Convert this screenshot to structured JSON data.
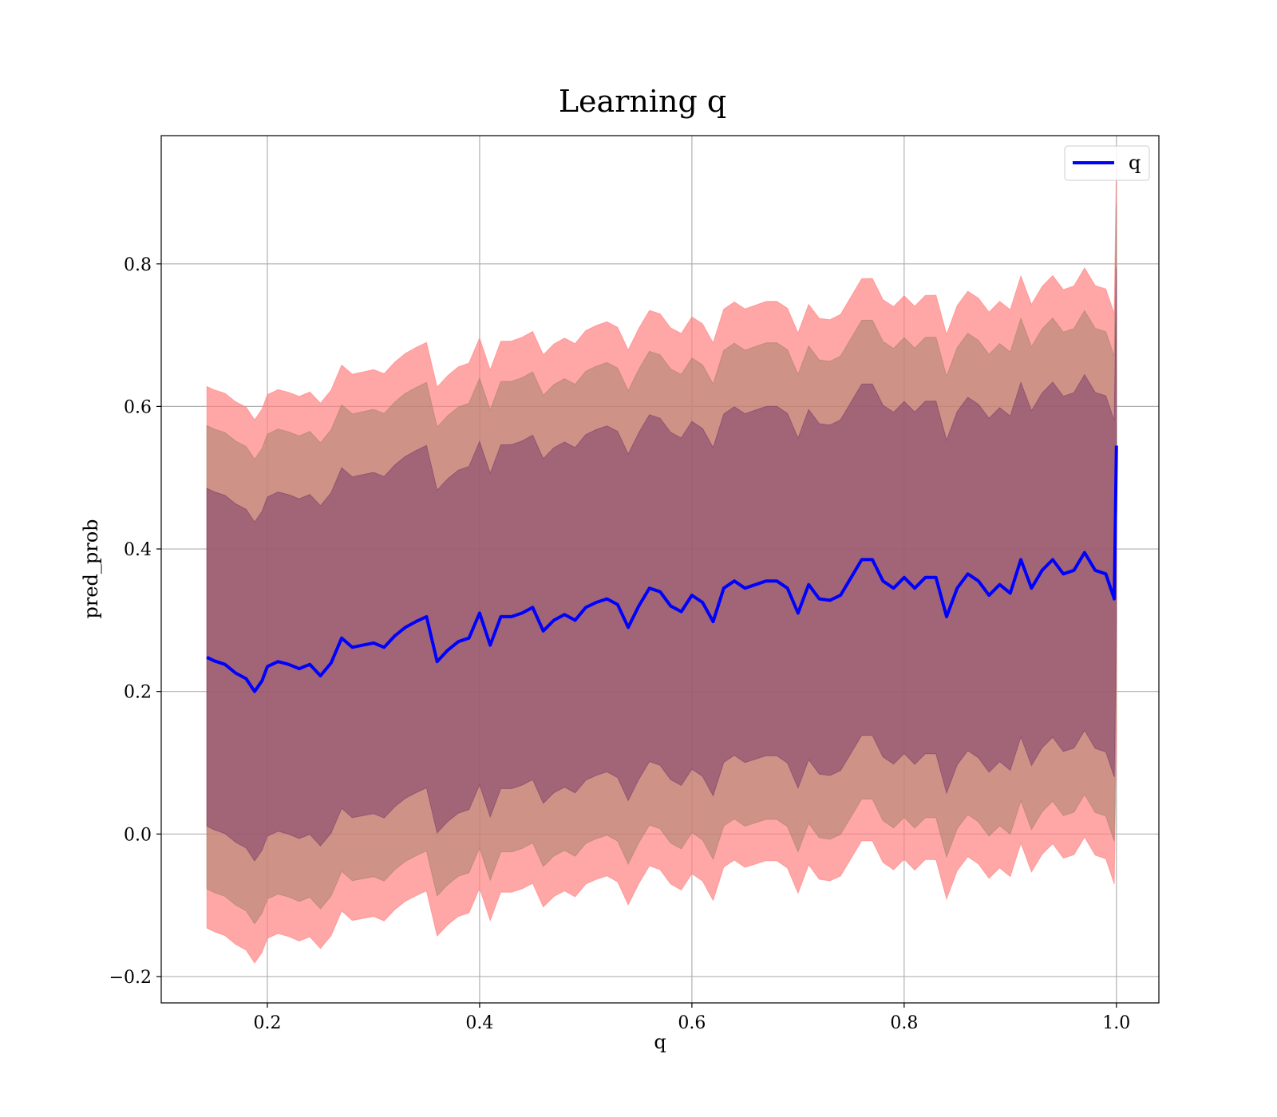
{
  "chart_data": {
    "type": "line",
    "title": "Learning q",
    "xlabel": "q",
    "ylabel": "pred_prob",
    "xlim": [
      0.1,
      1.04
    ],
    "ylim": [
      -0.237,
      0.98
    ],
    "grid": true,
    "legend_position": "top-right",
    "x_ticks": [
      {
        "value": 0.2,
        "label": "0.2"
      },
      {
        "value": 0.4,
        "label": "0.4"
      },
      {
        "value": 0.6,
        "label": "0.6"
      },
      {
        "value": 0.8,
        "label": "0.8"
      },
      {
        "value": 1.0,
        "label": "1.0"
      }
    ],
    "y_ticks": [
      {
        "value": -0.2,
        "label": "−0.2"
      },
      {
        "value": 0.0,
        "label": "0.0"
      },
      {
        "value": 0.2,
        "label": "0.2"
      },
      {
        "value": 0.4,
        "label": "0.4"
      },
      {
        "value": 0.6,
        "label": "0.6"
      },
      {
        "value": 0.8,
        "label": "0.8"
      }
    ],
    "series": [
      {
        "name": "q",
        "color": "#0000ff",
        "x": [
          0.143,
          0.15,
          0.16,
          0.17,
          0.18,
          0.188,
          0.195,
          0.2,
          0.21,
          0.22,
          0.23,
          0.24,
          0.25,
          0.26,
          0.27,
          0.28,
          0.29,
          0.3,
          0.31,
          0.32,
          0.33,
          0.34,
          0.35,
          0.36,
          0.37,
          0.38,
          0.39,
          0.4,
          0.41,
          0.42,
          0.43,
          0.44,
          0.45,
          0.46,
          0.47,
          0.48,
          0.49,
          0.5,
          0.51,
          0.52,
          0.53,
          0.54,
          0.55,
          0.56,
          0.57,
          0.58,
          0.59,
          0.6,
          0.61,
          0.62,
          0.63,
          0.64,
          0.65,
          0.66,
          0.67,
          0.68,
          0.69,
          0.7,
          0.71,
          0.72,
          0.73,
          0.74,
          0.75,
          0.76,
          0.77,
          0.78,
          0.79,
          0.8,
          0.81,
          0.82,
          0.83,
          0.84,
          0.85,
          0.86,
          0.87,
          0.88,
          0.89,
          0.9,
          0.91,
          0.92,
          0.93,
          0.94,
          0.95,
          0.96,
          0.97,
          0.98,
          0.99,
          0.998,
          1.0
        ],
        "values": [
          0.248,
          0.243,
          0.238,
          0.226,
          0.218,
          0.2,
          0.215,
          0.235,
          0.242,
          0.238,
          0.232,
          0.238,
          0.222,
          0.24,
          0.275,
          0.262,
          0.265,
          0.268,
          0.262,
          0.278,
          0.29,
          0.298,
          0.305,
          0.242,
          0.258,
          0.27,
          0.275,
          0.31,
          0.265,
          0.305,
          0.305,
          0.31,
          0.318,
          0.285,
          0.3,
          0.308,
          0.3,
          0.318,
          0.325,
          0.33,
          0.322,
          0.29,
          0.32,
          0.345,
          0.34,
          0.32,
          0.312,
          0.335,
          0.325,
          0.298,
          0.345,
          0.355,
          0.345,
          0.35,
          0.355,
          0.355,
          0.345,
          0.31,
          0.35,
          0.33,
          0.328,
          0.335,
          0.36,
          0.385,
          0.385,
          0.355,
          0.345,
          0.36,
          0.345,
          0.36,
          0.36,
          0.305,
          0.345,
          0.365,
          0.355,
          0.335,
          0.35,
          0.338,
          0.385,
          0.345,
          0.37,
          0.385,
          0.365,
          0.37,
          0.395,
          0.37,
          0.365,
          0.33,
          0.545
        ]
      }
    ],
    "bands": [
      {
        "color": "#ff8080",
        "opacity": 0.7,
        "halfwidth_start": 0.38,
        "halfwidth_end": 0.4
      },
      {
        "color": "#a8826e",
        "opacity": 0.55,
        "halfwidth_start": 0.325,
        "halfwidth_end": 0.34
      },
      {
        "color": "#7d3f6a",
        "opacity": 0.55,
        "halfwidth_start": 0.237,
        "halfwidth_end": 0.25
      }
    ]
  }
}
